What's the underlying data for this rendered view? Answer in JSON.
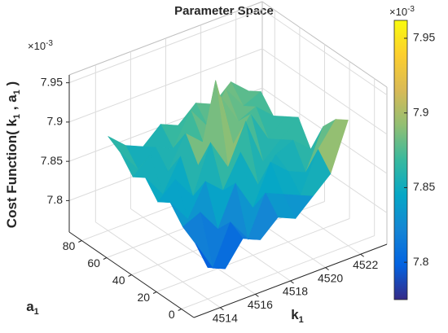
{
  "chart_data": {
    "type": "surface",
    "title": "Parameter Space",
    "xlabel": [
      "k",
      "1"
    ],
    "ylabel": [
      "a",
      "1"
    ],
    "zlabel": [
      "Cost Function( k",
      "1",
      " , a",
      "1",
      " )"
    ],
    "z_exponent": [
      "×10",
      "-3"
    ],
    "colorbar_exponent": [
      "×10",
      "-3"
    ],
    "x": [
      4514,
      4515,
      4516,
      4517,
      4518,
      4519,
      4520,
      4521,
      4522
    ],
    "y": [
      0,
      10,
      20,
      30,
      40,
      50,
      60,
      70,
      80
    ],
    "z": [
      [
        7.8,
        7.79,
        7.82,
        7.81,
        7.83,
        7.82,
        7.84,
        7.86,
        7.92
      ],
      [
        7.82,
        7.78,
        7.83,
        7.8,
        7.85,
        7.84,
        7.83,
        7.88,
        7.91
      ],
      [
        7.83,
        7.84,
        7.81,
        7.86,
        7.82,
        7.87,
        7.85,
        7.84,
        7.89
      ],
      [
        7.85,
        7.82,
        7.86,
        7.84,
        7.88,
        7.83,
        7.86,
        7.87,
        7.85
      ],
      [
        7.84,
        7.86,
        7.83,
        7.89,
        7.85,
        7.9,
        7.84,
        7.86,
        7.88
      ],
      [
        7.86,
        7.83,
        7.87,
        7.85,
        7.95,
        7.86,
        7.89,
        7.85,
        7.87
      ],
      [
        7.85,
        7.87,
        7.84,
        7.88,
        7.86,
        7.91,
        7.87,
        7.88,
        7.86
      ],
      [
        7.87,
        7.84,
        7.86,
        7.85,
        7.89,
        7.86,
        7.9,
        7.87,
        7.88
      ],
      [
        7.88,
        7.86,
        7.85,
        7.87,
        7.86,
        7.88,
        7.87,
        7.89,
        7.87
      ]
    ],
    "xlim": [
      4512.5,
      4523.5
    ],
    "ylim": [
      -10,
      90
    ],
    "zlim": [
      7.76,
      7.96
    ],
    "clim": [
      7.775,
      7.962
    ],
    "xticks": [
      4514,
      4516,
      4518,
      4520,
      4522
    ],
    "yticks": [
      0,
      20,
      40,
      60,
      80
    ],
    "zticks": [
      7.8,
      7.85,
      7.9,
      7.95
    ],
    "cticks": [
      7.8,
      7.85,
      7.9,
      7.95
    ],
    "grid": true,
    "colormap": [
      "#352a87",
      "#0363e1",
      "#1485d4",
      "#06a7c6",
      "#38b99e",
      "#92bf73",
      "#d9ba56",
      "#fcce2e",
      "#f9fb0e"
    ]
  }
}
